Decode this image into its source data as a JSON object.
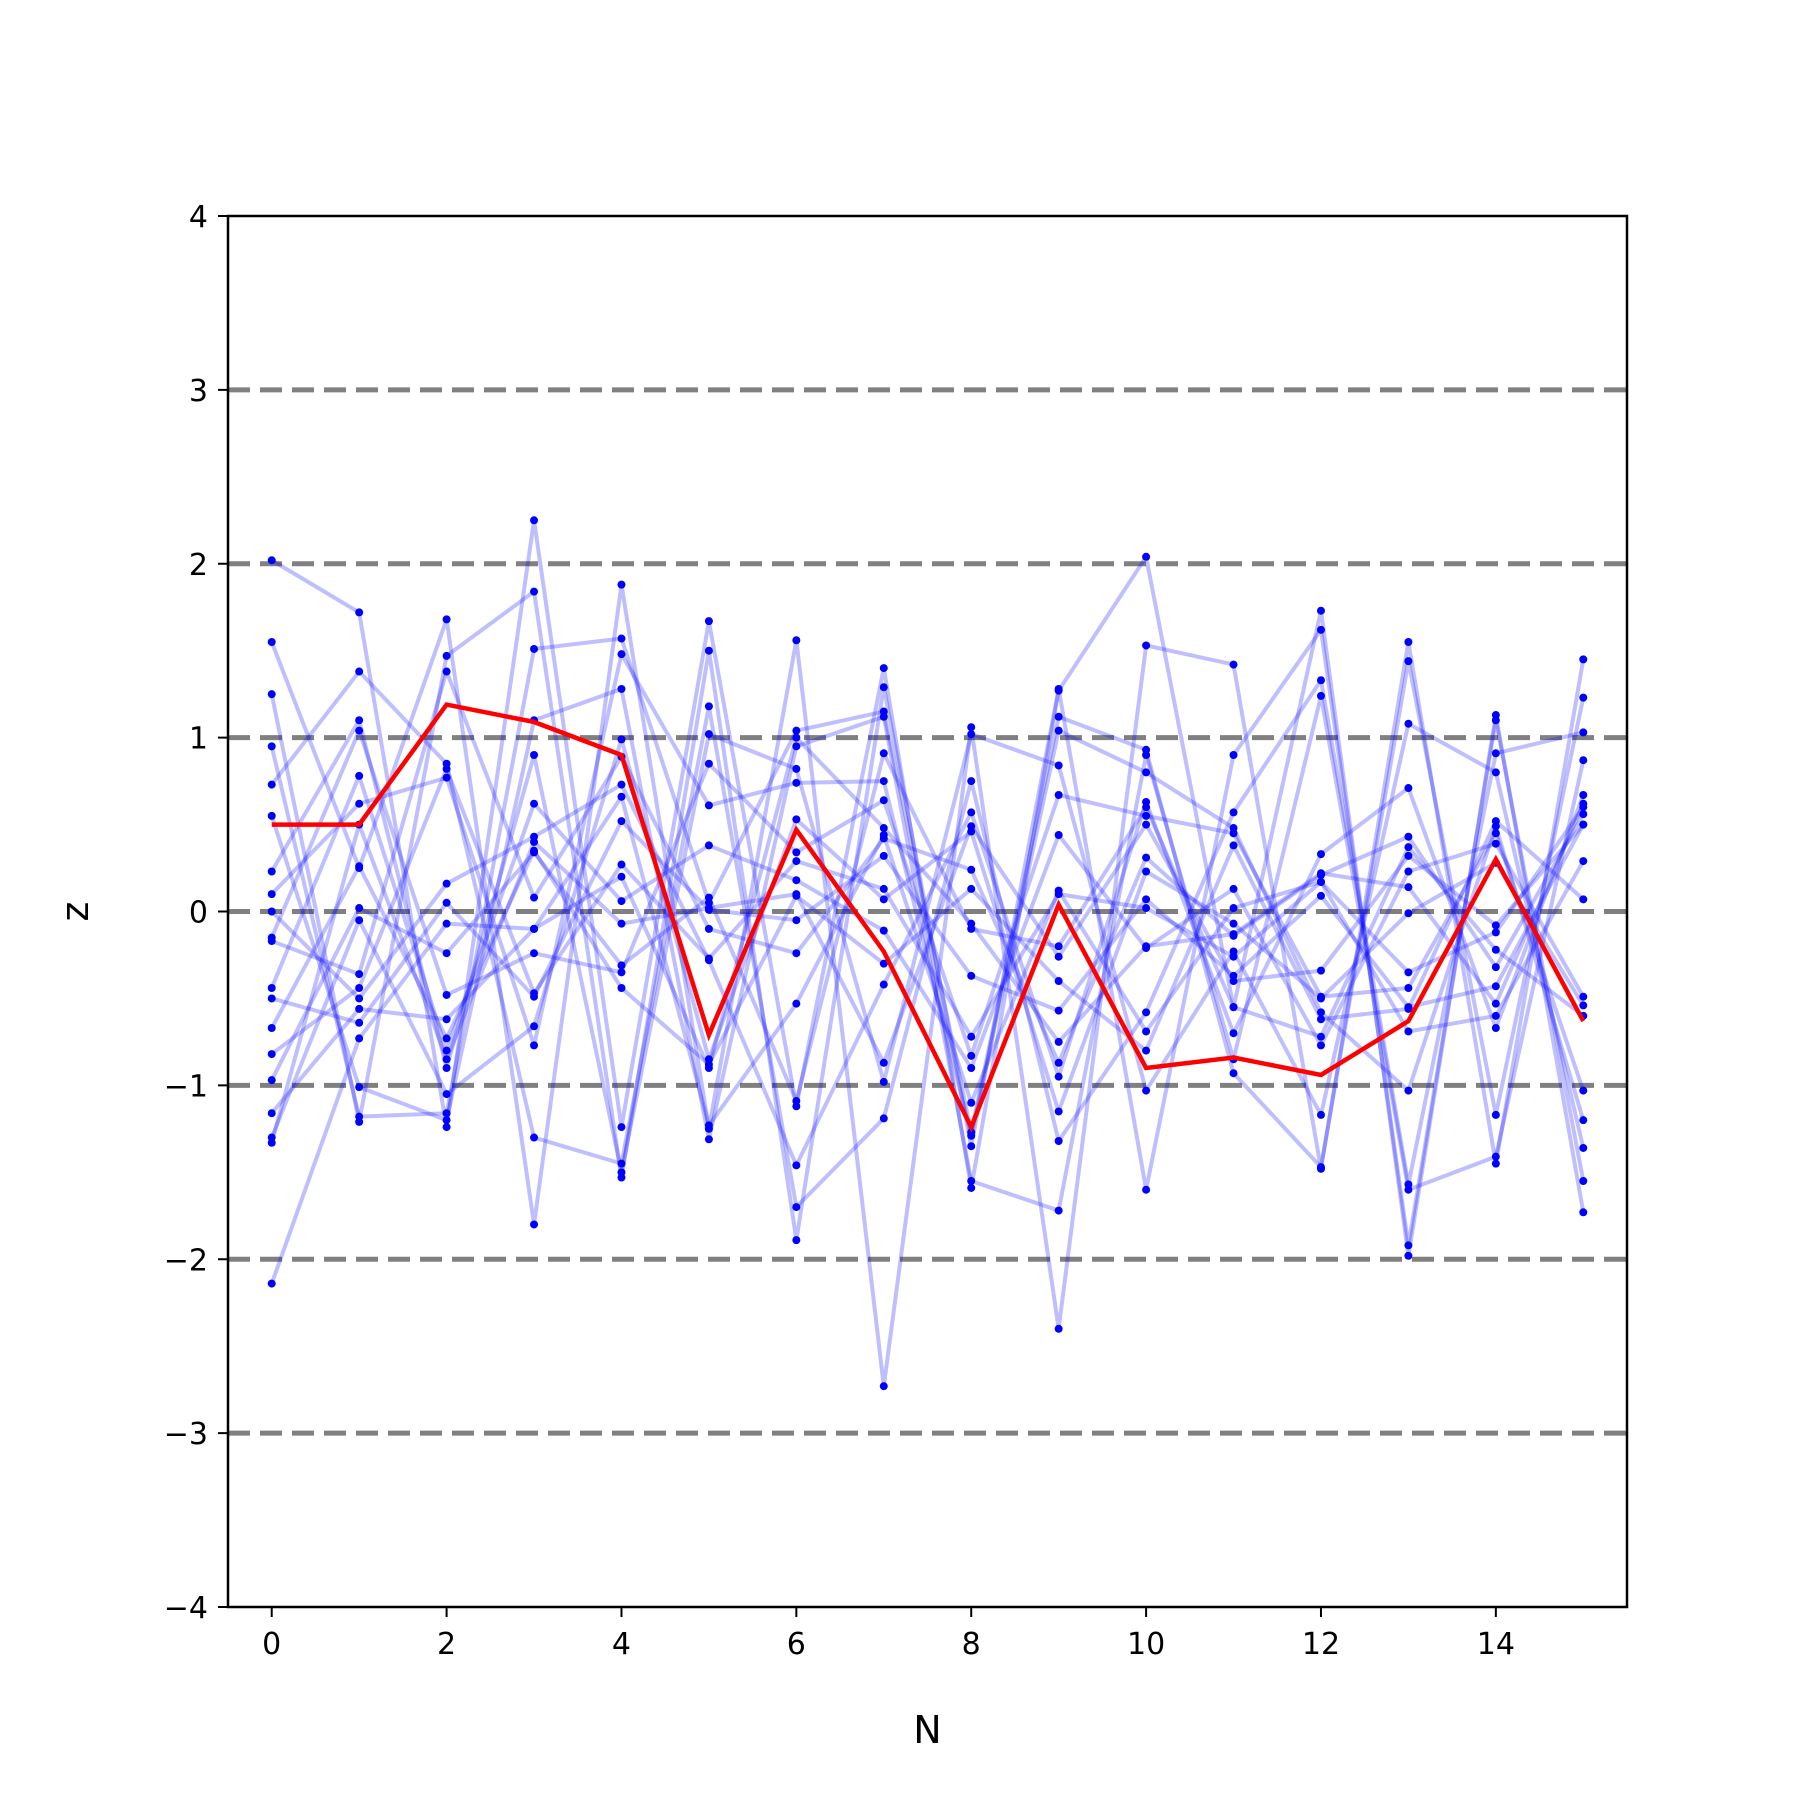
{
  "chart_data": {
    "type": "line",
    "title": "",
    "xlabel": "N",
    "ylabel": "z",
    "xlim": [
      -0.5,
      15.5
    ],
    "ylim": [
      -4,
      4
    ],
    "x_ticks": [
      0,
      2,
      4,
      6,
      8,
      10,
      12,
      14
    ],
    "x_tick_labels": [
      "0",
      "2",
      "4",
      "6",
      "8",
      "10",
      "12",
      "14"
    ],
    "y_ticks": [
      -4,
      -3,
      -2,
      -1,
      0,
      1,
      2,
      3,
      4
    ],
    "y_tick_labels": [
      "−4",
      "−3",
      "−2",
      "−1",
      "0",
      "1",
      "2",
      "3",
      "4"
    ],
    "reference_lines": [
      -3,
      -2,
      -1,
      0,
      1,
      2,
      3
    ],
    "grid": false,
    "legend": "none",
    "colors": {
      "background_series": "#0000ff",
      "highlight_series": "#ff0000",
      "reference_lines": "#808080"
    },
    "x": [
      0,
      1,
      2,
      3,
      4,
      5,
      6,
      7,
      8,
      9,
      10,
      11,
      12,
      13,
      14,
      15
    ],
    "highlight_series": {
      "values": [
        0.5,
        0.5,
        1.19,
        1.09,
        0.9,
        -0.71,
        0.47,
        -0.23,
        -1.24,
        0.04,
        -0.9,
        -0.84,
        -0.94,
        -0.63,
        0.3,
        -0.63
      ]
    },
    "background_series": [
      {
        "values": [
          2.02,
          1.72,
          -1.24,
          2.25,
          -1.24,
          1.67,
          -1.12,
          1.4,
          -1.59,
          1.27,
          2.04,
          -0.55,
          1.73,
          -1.98,
          1.13,
          -1.73
        ]
      },
      {
        "values": [
          1.55,
          0.25,
          1.68,
          -1.8,
          1.88,
          -1.25,
          1.56,
          -2.73,
          1.06,
          -2.4,
          1.53,
          1.42,
          -1.48,
          1.55,
          -1.45,
          1.45
        ]
      },
      {
        "values": [
          1.25,
          -1.21,
          1.47,
          1.84,
          -1.53,
          1.5,
          -1.89,
          1.29,
          -1.35,
          1.28,
          -1.6,
          0.9,
          1.62,
          -1.92,
          1.1,
          -1.55
        ]
      },
      {
        "values": [
          0.95,
          -1.18,
          -1.16,
          1.51,
          1.57,
          0.05,
          1.04,
          1.15,
          -1.27,
          1.12,
          0.93,
          -0.93,
          -1.47,
          1.44,
          -1.17,
          1.23
        ]
      },
      {
        "values": [
          0.73,
          1.38,
          0.85,
          -1.3,
          -1.45,
          1.18,
          -1.7,
          -1.19,
          0.75,
          -1.32,
          -0.58,
          0.57,
          1.33,
          -1.57,
          0.91,
          1.03
        ]
      },
      {
        "values": [
          0.55,
          -1.01,
          -1.2,
          1.1,
          1.28,
          -1.31,
          0.95,
          1.12,
          -1.55,
          -1.72,
          0.9,
          -0.85,
          1.24,
          -1.6,
          -1.41,
          0.87
        ]
      },
      {
        "values": [
          0.23,
          1.1,
          -0.9,
          0.9,
          -1.5,
          1.02,
          0.82,
          -0.98,
          1.02,
          0.84,
          -1.03,
          -0.23,
          -1.17,
          1.08,
          0.8,
          -1.36
        ]
      },
      {
        "values": [
          0.1,
          0.62,
          0.77,
          -0.77,
          1.48,
          0.61,
          0.74,
          0.75,
          -1.29,
          1.04,
          0.8,
          0.48,
          -0.58,
          -1.03,
          0.49,
          -1.2
        ]
      },
      {
        "values": [
          0.0,
          -0.5,
          0.16,
          0.43,
          0.73,
          -0.28,
          -1.46,
          -0.42,
          0.57,
          -0.95,
          0.63,
          -0.7,
          0.33,
          0.71,
          -0.67,
          0.67
        ]
      },
      {
        "values": [
          -0.15,
          1.04,
          -0.48,
          -0.24,
          -0.35,
          0.85,
          0.34,
          0.64,
          -0.83,
          0.67,
          0.55,
          0.45,
          -0.49,
          -0.44,
          0.45,
          -1.03
        ]
      },
      {
        "values": [
          -0.17,
          -0.36,
          1.38,
          0.08,
          0.89,
          -0.1,
          -0.24,
          0.42,
          0.24,
          -0.87,
          0.31,
          -0.14,
          0.21,
          0.43,
          -0.32,
          0.56
        ]
      },
      {
        "values": [
          -0.44,
          0.78,
          -0.8,
          0.62,
          0.06,
          0.38,
          0.18,
          -0.11,
          -0.9,
          0.44,
          -0.21,
          0.13,
          -0.77,
          0.23,
          0.39,
          -0.49
        ]
      },
      {
        "values": [
          -0.5,
          -0.64,
          0.05,
          -0.49,
          0.52,
          0.01,
          -0.05,
          0.32,
          -0.37,
          -0.57,
          0.07,
          -0.37,
          0.09,
          -0.55,
          -0.43,
          0.5
        ]
      },
      {
        "values": [
          -0.67,
          0.26,
          -0.73,
          0.35,
          -0.44,
          -0.88,
          0.09,
          -0.3,
          0.13,
          -0.4,
          -0.8,
          0.38,
          -0.62,
          -0.56,
          0.52,
          0.07
        ]
      },
      {
        "values": [
          -0.82,
          -0.44,
          0.82,
          -0.47,
          0.27,
          -0.27,
          0.29,
          0.13,
          -0.72,
          0.1,
          0.02,
          -0.26,
          0.17,
          -0.69,
          -0.6,
          0.29
        ]
      },
      {
        "values": [
          -0.97,
          0.02,
          -0.24,
          0.34,
          -0.31,
          0.08,
          -1.09,
          0.91,
          -0.1,
          -0.2,
          0.6,
          -0.55,
          -0.72,
          0.37,
          -0.22,
          -0.6
        ]
      },
      {
        "values": [
          -1.16,
          -0.56,
          -0.62,
          -0.1,
          0.2,
          -0.9,
          1.0,
          0.48,
          -0.07,
          -0.75,
          -0.2,
          -0.13,
          0.22,
          0.14,
          -0.53,
          0.62
        ]
      },
      {
        "values": [
          -1.3,
          -0.05,
          -1.05,
          -0.66,
          0.99,
          -0.85,
          0.53,
          0.07,
          0.46,
          -1.15,
          0.23,
          -0.07,
          -0.5,
          -0.01,
          0.28,
          -0.54
        ]
      },
      {
        "values": [
          -1.33,
          0.5,
          -0.85,
          0.4,
          -0.07,
          0.02,
          0.1,
          -0.87,
          0.49,
          -0.26,
          0.5,
          -0.4,
          -0.34,
          0.32,
          -0.08,
          0.5
        ]
      },
      {
        "values": [
          -2.14,
          -0.73,
          -0.07,
          -0.1,
          0.66,
          -1.23,
          -0.53,
          0.44,
          -1.1,
          0.12,
          -0.69,
          0.02,
          0.17,
          -0.35,
          -0.12,
          0.6
        ]
      }
    ]
  }
}
